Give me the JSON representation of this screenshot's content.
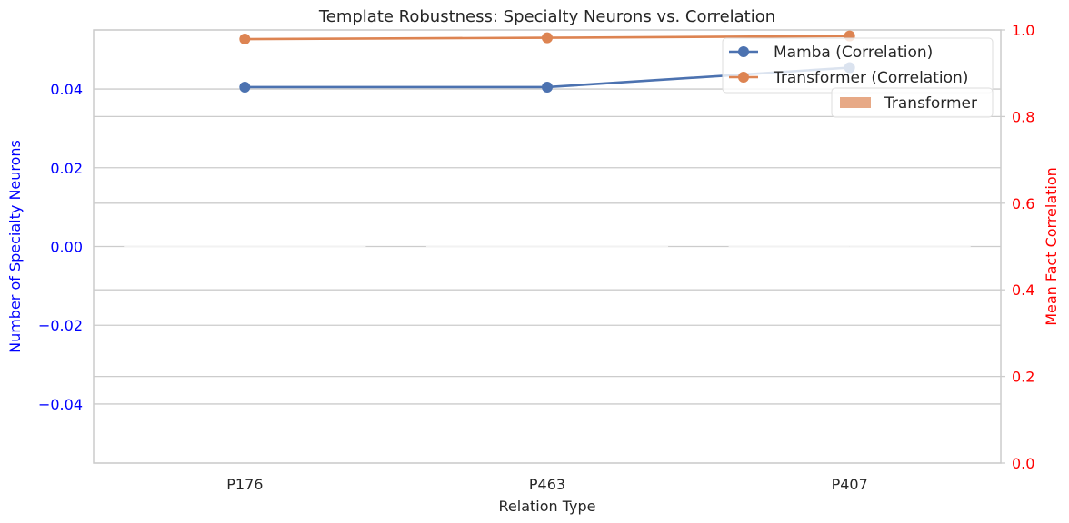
{
  "chart_data": {
    "type": "line",
    "title": "Template Robustness: Specialty Neurons vs. Correlation",
    "xlabel": "Relation Type",
    "ylabel_left": "Number of Specialty Neurons",
    "ylabel_right": "Mean Fact Correlation",
    "categories": [
      "P176",
      "P463",
      "P407"
    ],
    "left_axis": {
      "ylim": [
        -0.055,
        0.055
      ],
      "ticks": [
        -0.04,
        -0.02,
        0.0,
        0.02,
        0.04
      ],
      "tick_labels": [
        "−0.04",
        "−0.02",
        "0.00",
        "0.02",
        "0.04"
      ],
      "color": "#0000ff"
    },
    "right_axis": {
      "ylim": [
        0.0,
        1.0
      ],
      "ticks": [
        0.0,
        0.2,
        0.4,
        0.6,
        0.8,
        1.0
      ],
      "tick_labels": [
        "0.0",
        "0.2",
        "0.4",
        "0.6",
        "0.8",
        "1.0"
      ],
      "color": "#ff0000"
    },
    "bars": {
      "series": [
        {
          "name": "Mamba",
          "values": [
            0,
            0,
            0
          ],
          "color": "#4c72b0"
        },
        {
          "name": "Transformer",
          "values": [
            0,
            0,
            0
          ],
          "color": "#dd8452"
        }
      ]
    },
    "lines": {
      "series": [
        {
          "name": "Mamba (Correlation)",
          "values": [
            0.868,
            0.868,
            0.913
          ],
          "color": "#4c72b0"
        },
        {
          "name": "Transformer (Correlation)",
          "values": [
            0.979,
            0.982,
            0.986
          ],
          "color": "#dd8452"
        }
      ]
    },
    "legend_position": "top-right",
    "legend_entries": [
      {
        "label": "Mamba (Correlation)",
        "kind": "line",
        "color": "#4c72b0"
      },
      {
        "label": "Transformer (Correlation)",
        "kind": "line",
        "color": "#dd8452"
      },
      {
        "label": "Transformer",
        "kind": "bar",
        "color": "#dd8452"
      }
    ],
    "grid": true
  }
}
